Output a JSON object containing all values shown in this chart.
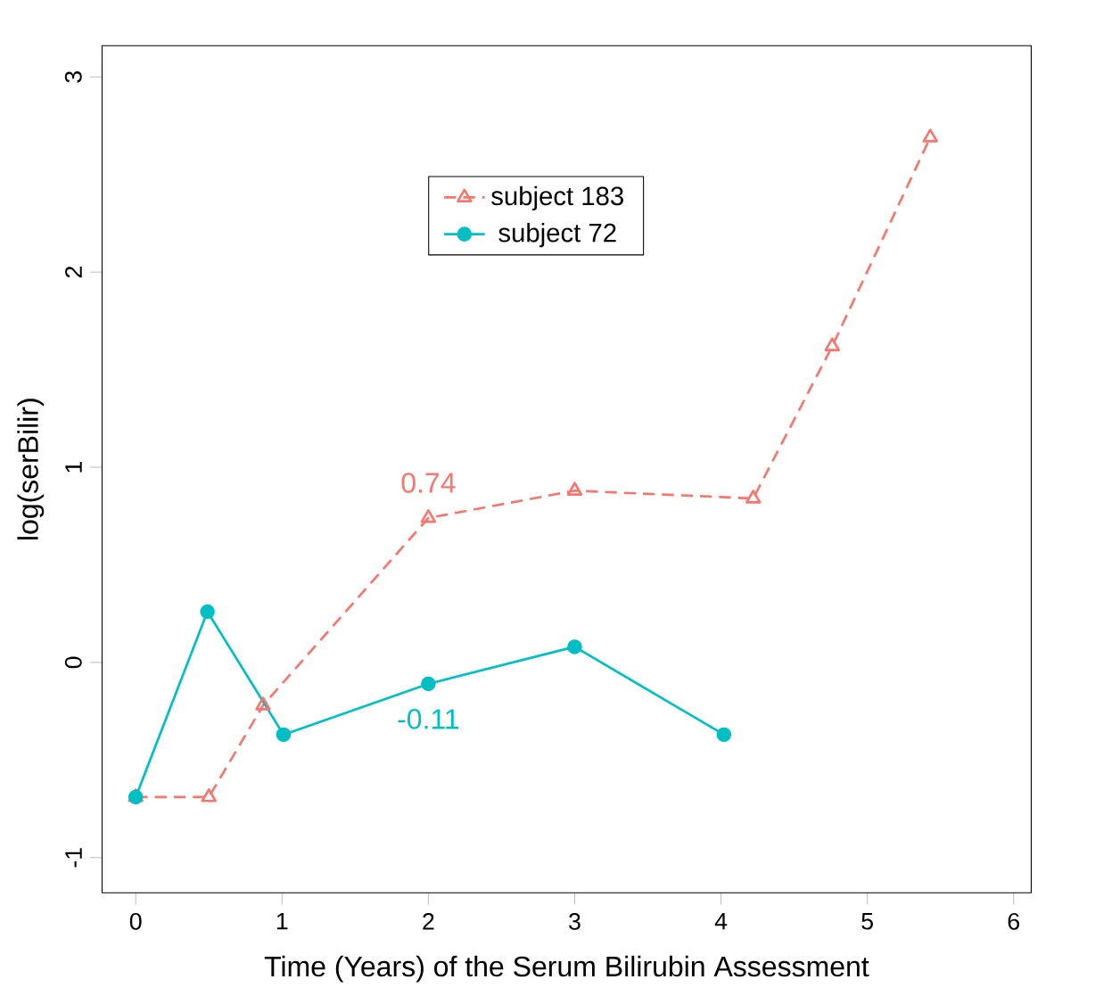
{
  "chart_data": {
    "type": "line",
    "xlabel": "Time (Years) of the Serum Bilirubin Assessment",
    "ylabel": "log(serBilir)",
    "xlim": [
      -0.23,
      6.12
    ],
    "ylim": [
      -1.18,
      3.16
    ],
    "xticks": [
      0,
      1,
      2,
      3,
      4,
      5,
      6
    ],
    "yticks": [
      -1,
      0,
      1,
      2,
      3
    ],
    "grid": false,
    "legend": "top",
    "series": [
      {
        "name": "subject  183",
        "color": "#f8766d",
        "marker": "triangle",
        "line_style": "dashed",
        "x": [
          0,
          0.5,
          0.87,
          2,
          3,
          4.22,
          4.76,
          5.43
        ],
        "values": [
          -0.69,
          -0.69,
          -0.22,
          0.74,
          0.88,
          0.84,
          1.62,
          2.69
        ]
      },
      {
        "name": "subject  72",
        "color": "#00bfc4",
        "marker": "circle",
        "line_style": "solid",
        "x": [
          0,
          0.49,
          1.01,
          2,
          3,
          4.02
        ],
        "values": [
          -0.69,
          0.26,
          -0.37,
          -0.11,
          0.08,
          -0.37
        ]
      }
    ],
    "annotations": [
      {
        "text": "0.74",
        "x": 2,
        "y": 0.74
      },
      {
        "text": "-0.11",
        "x": 2,
        "y": -0.11
      }
    ]
  }
}
